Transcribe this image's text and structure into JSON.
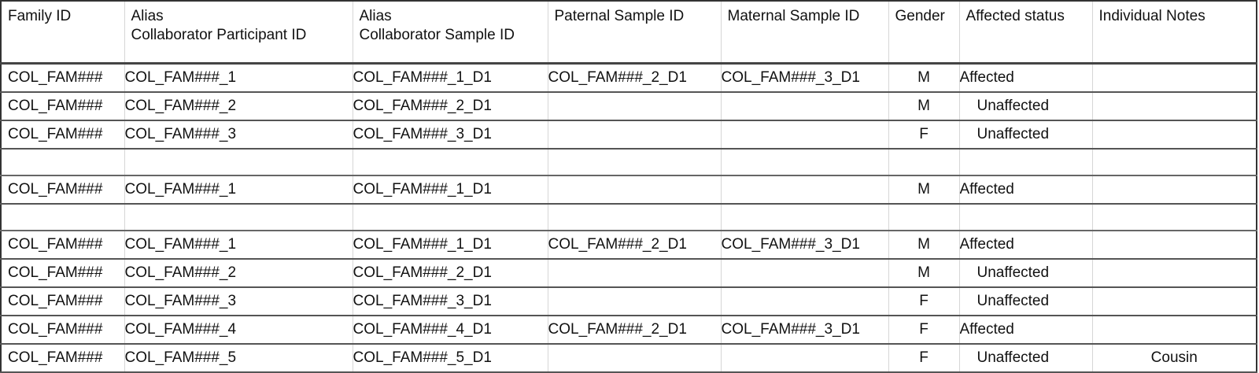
{
  "headers": {
    "family_id": "Family ID",
    "participant_alias": "Alias",
    "participant_id": "Collaborator Participant ID",
    "sample_alias": "Alias",
    "sample_id": "Collaborator Sample ID",
    "paternal": "Paternal Sample ID",
    "maternal": "Maternal Sample ID",
    "gender": "Gender",
    "affected": "Affected status",
    "notes": "Individual Notes"
  },
  "rows": [
    {
      "family": "COL_FAM###",
      "participant": "COL_FAM###_1",
      "sample": "COL_FAM###_1_D1",
      "paternal": "COL_FAM###_2_D1",
      "maternal": "COL_FAM###_3_D1",
      "gender": "M",
      "affected": "Affected",
      "notes": ""
    },
    {
      "family": "COL_FAM###",
      "participant": "COL_FAM###_2",
      "sample": "COL_FAM###_2_D1",
      "paternal": "",
      "maternal": "",
      "gender": "M",
      "affected": "Unaffected",
      "notes": ""
    },
    {
      "family": "COL_FAM###",
      "participant": "COL_FAM###_3",
      "sample": "COL_FAM###_3_D1",
      "paternal": "",
      "maternal": "",
      "gender": "F",
      "affected": "Unaffected",
      "notes": ""
    },
    {
      "family": "COL_FAM###",
      "participant": "COL_FAM###_1",
      "sample": "COL_FAM###_1_D1",
      "paternal": "",
      "maternal": "",
      "gender": "M",
      "affected": "Affected",
      "notes": ""
    },
    {
      "family": "COL_FAM###",
      "participant": "COL_FAM###_1",
      "sample": "COL_FAM###_1_D1",
      "paternal": "COL_FAM###_2_D1",
      "maternal": "COL_FAM###_3_D1",
      "gender": "M",
      "affected": "Affected",
      "notes": ""
    },
    {
      "family": "COL_FAM###",
      "participant": "COL_FAM###_2",
      "sample": "COL_FAM###_2_D1",
      "paternal": "",
      "maternal": "",
      "gender": "M",
      "affected": "Unaffected",
      "notes": ""
    },
    {
      "family": "COL_FAM###",
      "participant": "COL_FAM###_3",
      "sample": "COL_FAM###_3_D1",
      "paternal": "",
      "maternal": "",
      "gender": "F",
      "affected": "Unaffected",
      "notes": ""
    },
    {
      "family": "COL_FAM###",
      "participant": "COL_FAM###_4",
      "sample": "COL_FAM###_4_D1",
      "paternal": "COL_FAM###_2_D1",
      "maternal": "COL_FAM###_3_D1",
      "gender": "F",
      "affected": "Affected",
      "notes": ""
    },
    {
      "family": "COL_FAM###",
      "participant": "COL_FAM###_5",
      "sample": "COL_FAM###_5_D1",
      "paternal": "",
      "maternal": "",
      "gender": "F",
      "affected": "Unaffected",
      "notes": "Cousin"
    }
  ]
}
